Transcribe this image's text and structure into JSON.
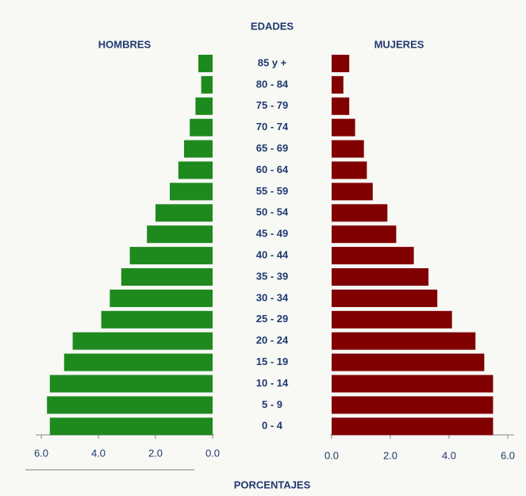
{
  "chart_data": {
    "type": "pyramid",
    "title": "EDADES",
    "xlabel": "PORCENTAJES",
    "categories": [
      "85 y +",
      "80 - 84",
      "75 - 79",
      "70 - 74",
      "65 - 69",
      "60 - 64",
      "55 - 59",
      "50 - 54",
      "45 - 49",
      "40 - 44",
      "35 - 39",
      "30 - 34",
      "25 - 29",
      "20 - 24",
      "15 - 19",
      "10 - 14",
      "5 - 9",
      "0 - 4"
    ],
    "series": [
      {
        "name": "HOMBRES",
        "color": "#1e8a1e",
        "values": [
          0.5,
          0.4,
          0.6,
          0.8,
          1.0,
          1.2,
          1.5,
          2.0,
          2.3,
          2.9,
          3.2,
          3.6,
          3.9,
          4.9,
          5.2,
          5.7,
          5.8,
          5.7
        ]
      },
      {
        "name": "MUJERES",
        "color": "#800000",
        "values": [
          0.6,
          0.4,
          0.6,
          0.8,
          1.1,
          1.2,
          1.4,
          1.9,
          2.2,
          2.8,
          3.3,
          3.6,
          4.1,
          4.9,
          5.2,
          5.5,
          5.5,
          5.5
        ]
      }
    ],
    "xlim": [
      0,
      6
    ],
    "xticks": [
      {
        "value": 0,
        "label": "0.0"
      },
      {
        "value": 2,
        "label": "2.0"
      },
      {
        "value": 4,
        "label": "4.0"
      },
      {
        "value": 6,
        "label": "6.0"
      }
    ]
  }
}
